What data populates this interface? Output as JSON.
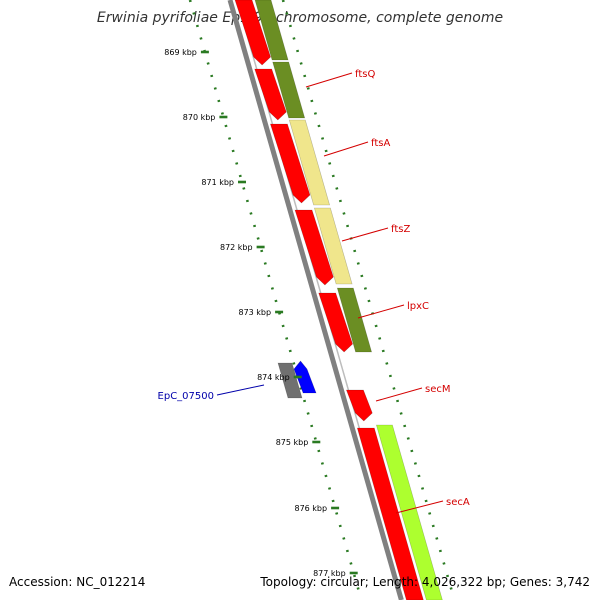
{
  "header": {
    "title": "Erwinia pyrifoliae Ep1/96 chromosome, complete genome"
  },
  "footer": {
    "accession": "Accession: NC_012214",
    "summary": "Topology: circular; Length: 4,026,322 bp; Genes: 3,742"
  },
  "colors": {
    "backbone": "#808080",
    "ticks": "#2a7a22",
    "cds": "#ff0000",
    "gene_label": "#d40000",
    "blue_label": "#0000aa",
    "olive": "#6b8e23",
    "khaki": "#f0e68c",
    "yellowgreen": "#adff2f",
    "gray": "#707070",
    "blue": "#0000ff"
  },
  "ruler": {
    "labels": [
      "869 kbp",
      "870 kbp",
      "871 kbp",
      "872 kbp",
      "873 kbp",
      "874 kbp",
      "875 kbp",
      "876 kbp",
      "877 kbp"
    ]
  },
  "genes": [
    {
      "label": "ftsQ",
      "color": "gene_label"
    },
    {
      "label": "ftsA",
      "color": "gene_label"
    },
    {
      "label": "ftsZ",
      "color": "gene_label"
    },
    {
      "label": "lpxC",
      "color": "gene_label"
    },
    {
      "label": "secM",
      "color": "gene_label"
    },
    {
      "label": "secA",
      "color": "gene_label"
    },
    {
      "label": "EpC_07500",
      "color": "blue_label"
    }
  ]
}
